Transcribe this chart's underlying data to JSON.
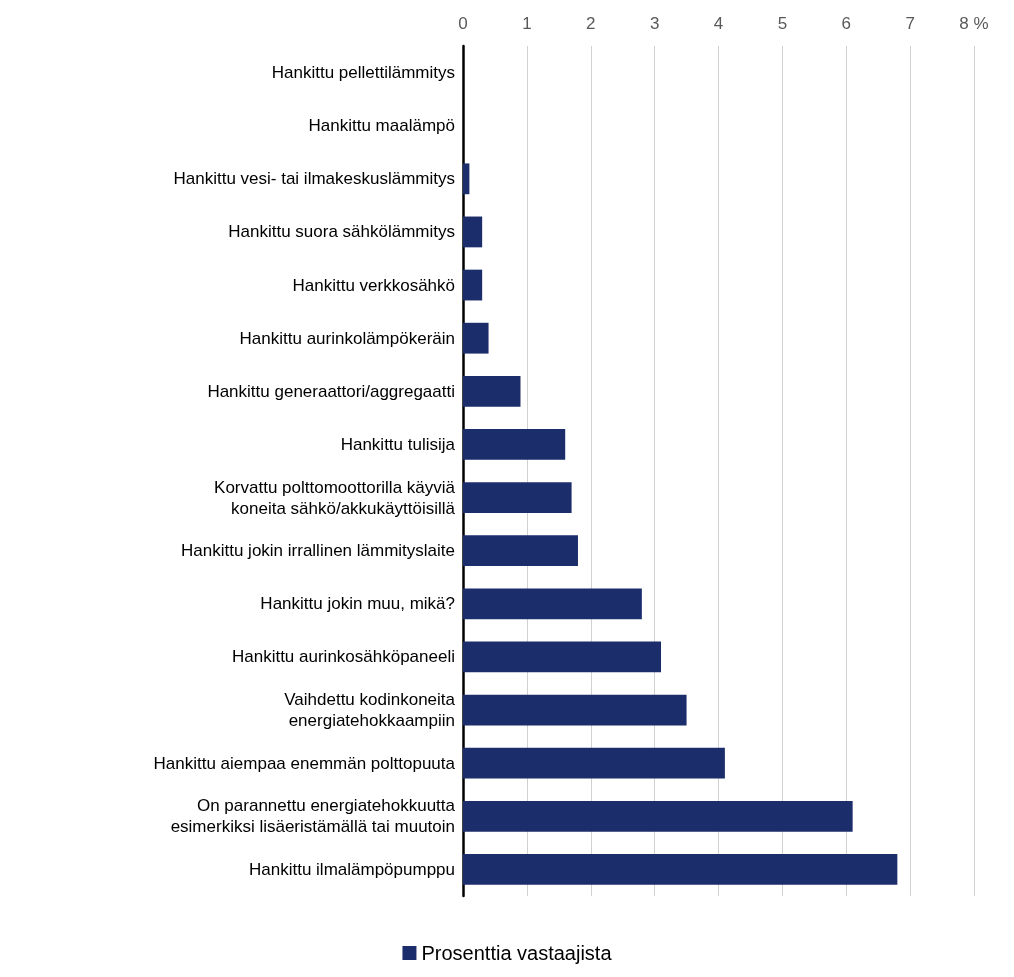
{
  "chart_data": {
    "type": "bar",
    "orientation": "horizontal",
    "categories": [
      "Hankittu pellettilämmitys",
      "Hankittu maalämpö",
      "Hankittu vesi- tai ilmakeskuslämmitys",
      "Hankittu suora sähkölämmitys",
      "Hankittu verkkosähkö",
      "Hankittu aurinkolämpökeräin",
      "Hankittu generaattori/aggregaatti",
      "Hankittu tulisija",
      "Korvattu polttomoottorilla käyviä\nkoneita sähkö/akkukäyttöisillä",
      "Hankittu jokin irrallinen lämmityslaite",
      "Hankittu jokin muu, mikä?",
      "Hankittu aurinkosähköpaneeli",
      "Vaihdettu kodinkoneita\nenergiatehokkaampiin",
      "Hankittu aiempaa enemmän polttopuuta",
      "On parannettu energiatehokkuutta\nesimerkiksi lisäeristämällä tai muutoin",
      "Hankittu ilmalämpöpumppu"
    ],
    "series": [
      {
        "name": "Prosenttia vastaajista",
        "color": "#1c2d6b",
        "values": [
          0,
          0,
          0.1,
          0.3,
          0.3,
          0.4,
          0.9,
          1.6,
          1.7,
          1.8,
          2.8,
          3.1,
          3.5,
          4.1,
          6.1,
          6.8
        ]
      }
    ],
    "xlim": [
      0,
      8
    ],
    "xticks": [
      0,
      1,
      2,
      3,
      4,
      5,
      6,
      7,
      {
        "value": 8,
        "label": "8 %"
      }
    ],
    "grid": "x",
    "legend": "bottom"
  }
}
